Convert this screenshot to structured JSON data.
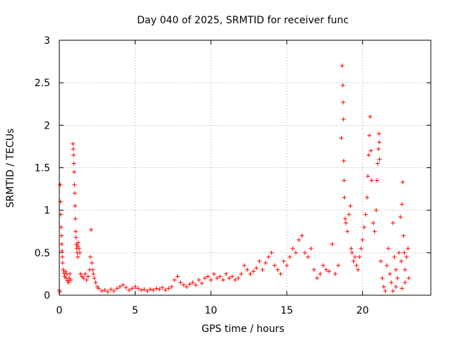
{
  "chart_data": {
    "type": "scatter",
    "title": "Day 040 of 2025, SRMTID for receiver func",
    "xlabel": "GPS time / hours",
    "ylabel": "SRMTID / TECUs",
    "xlim": [
      0,
      24.5
    ],
    "ylim": [
      0,
      3
    ],
    "xticks": [
      0,
      5,
      10,
      15,
      20
    ],
    "xtick_labels": [
      "0",
      "5",
      "10",
      "15",
      "20"
    ],
    "yticks": [
      0,
      0.5,
      1,
      1.5,
      2,
      2.5,
      3
    ],
    "ytick_labels": [
      "0",
      "0.5",
      "1",
      "1.5",
      "2",
      "2.5",
      "3"
    ],
    "grid": true,
    "marker": "+",
    "color": "#ff0000",
    "series": [
      {
        "name": "SRMTID",
        "points": [
          [
            0.0,
            0.06
          ],
          [
            0.03,
            0.04
          ],
          [
            0.06,
            1.3
          ],
          [
            0.08,
            1.1
          ],
          [
            0.1,
            0.95
          ],
          [
            0.12,
            0.8
          ],
          [
            0.14,
            0.7
          ],
          [
            0.16,
            0.6
          ],
          [
            0.18,
            0.52
          ],
          [
            0.2,
            0.45
          ],
          [
            0.22,
            0.38
          ],
          [
            0.25,
            0.3
          ],
          [
            0.3,
            0.26
          ],
          [
            0.35,
            0.22
          ],
          [
            0.4,
            0.28
          ],
          [
            0.45,
            0.2
          ],
          [
            0.5,
            0.25
          ],
          [
            0.55,
            0.17
          ],
          [
            0.6,
            0.15
          ],
          [
            0.65,
            0.2
          ],
          [
            0.7,
            0.25
          ],
          [
            0.75,
            0.18
          ],
          [
            0.9,
            1.78
          ],
          [
            0.92,
            1.72
          ],
          [
            0.94,
            1.65
          ],
          [
            0.96,
            1.55
          ],
          [
            0.98,
            1.45
          ],
          [
            1.0,
            1.3
          ],
          [
            1.02,
            1.2
          ],
          [
            1.04,
            1.05
          ],
          [
            1.06,
            0.9
          ],
          [
            1.08,
            0.75
          ],
          [
            1.1,
            0.68
          ],
          [
            1.12,
            0.6
          ],
          [
            1.15,
            0.55
          ],
          [
            1.18,
            0.5
          ],
          [
            1.2,
            0.58
          ],
          [
            1.22,
            0.45
          ],
          [
            1.25,
            0.62
          ],
          [
            1.3,
            0.55
          ],
          [
            1.35,
            0.5
          ],
          [
            1.4,
            0.25
          ],
          [
            1.5,
            0.22
          ],
          [
            1.6,
            0.2
          ],
          [
            1.7,
            0.25
          ],
          [
            1.8,
            0.18
          ],
          [
            1.9,
            0.22
          ],
          [
            2.0,
            0.3
          ],
          [
            2.05,
            0.45
          ],
          [
            2.1,
            0.77
          ],
          [
            2.15,
            0.38
          ],
          [
            2.2,
            0.3
          ],
          [
            2.25,
            0.25
          ],
          [
            2.3,
            0.2
          ],
          [
            2.4,
            0.15
          ],
          [
            2.5,
            0.1
          ],
          [
            2.6,
            0.08
          ],
          [
            2.8,
            0.05
          ],
          [
            3.0,
            0.06
          ],
          [
            3.2,
            0.04
          ],
          [
            3.4,
            0.07
          ],
          [
            3.6,
            0.05
          ],
          [
            3.8,
            0.08
          ],
          [
            4.0,
            0.1
          ],
          [
            4.2,
            0.12
          ],
          [
            4.4,
            0.09
          ],
          [
            4.6,
            0.06
          ],
          [
            4.8,
            0.08
          ],
          [
            5.0,
            0.1
          ],
          [
            5.2,
            0.08
          ],
          [
            5.4,
            0.06
          ],
          [
            5.6,
            0.07
          ],
          [
            5.8,
            0.05
          ],
          [
            6.0,
            0.07
          ],
          [
            6.2,
            0.06
          ],
          [
            6.4,
            0.08
          ],
          [
            6.6,
            0.07
          ],
          [
            6.8,
            0.09
          ],
          [
            7.0,
            0.06
          ],
          [
            7.2,
            0.08
          ],
          [
            7.4,
            0.1
          ],
          [
            7.6,
            0.18
          ],
          [
            7.8,
            0.22
          ],
          [
            8.0,
            0.15
          ],
          [
            8.2,
            0.12
          ],
          [
            8.4,
            0.1
          ],
          [
            8.6,
            0.13
          ],
          [
            8.8,
            0.15
          ],
          [
            9.0,
            0.12
          ],
          [
            9.2,
            0.18
          ],
          [
            9.4,
            0.14
          ],
          [
            9.6,
            0.2
          ],
          [
            9.8,
            0.22
          ],
          [
            10.0,
            0.18
          ],
          [
            10.2,
            0.25
          ],
          [
            10.4,
            0.2
          ],
          [
            10.6,
            0.22
          ],
          [
            10.8,
            0.18
          ],
          [
            11.0,
            0.25
          ],
          [
            11.2,
            0.2
          ],
          [
            11.4,
            0.22
          ],
          [
            11.6,
            0.18
          ],
          [
            11.8,
            0.2
          ],
          [
            12.0,
            0.25
          ],
          [
            12.2,
            0.35
          ],
          [
            12.4,
            0.3
          ],
          [
            12.6,
            0.25
          ],
          [
            12.8,
            0.28
          ],
          [
            13.0,
            0.32
          ],
          [
            13.2,
            0.4
          ],
          [
            13.4,
            0.3
          ],
          [
            13.6,
            0.38
          ],
          [
            13.8,
            0.45
          ],
          [
            14.0,
            0.5
          ],
          [
            14.2,
            0.35
          ],
          [
            14.4,
            0.3
          ],
          [
            14.6,
            0.25
          ],
          [
            14.8,
            0.4
          ],
          [
            15.0,
            0.35
          ],
          [
            15.2,
            0.45
          ],
          [
            15.4,
            0.55
          ],
          [
            15.6,
            0.5
          ],
          [
            15.8,
            0.65
          ],
          [
            16.0,
            0.7
          ],
          [
            16.2,
            0.5
          ],
          [
            16.4,
            0.45
          ],
          [
            16.6,
            0.55
          ],
          [
            16.8,
            0.3
          ],
          [
            17.0,
            0.2
          ],
          [
            17.2,
            0.25
          ],
          [
            17.4,
            0.35
          ],
          [
            17.6,
            0.3
          ],
          [
            17.8,
            0.28
          ],
          [
            18.0,
            0.6
          ],
          [
            18.2,
            0.25
          ],
          [
            18.4,
            0.35
          ],
          [
            18.6,
            1.85
          ],
          [
            18.65,
            2.7
          ],
          [
            18.7,
            2.47
          ],
          [
            18.72,
            2.27
          ],
          [
            18.74,
            2.07
          ],
          [
            18.76,
            1.58
          ],
          [
            18.78,
            1.35
          ],
          [
            18.8,
            1.15
          ],
          [
            18.85,
            0.9
          ],
          [
            18.9,
            0.85
          ],
          [
            19.0,
            0.75
          ],
          [
            19.1,
            0.95
          ],
          [
            19.2,
            1.05
          ],
          [
            19.25,
            0.55
          ],
          [
            19.3,
            0.5
          ],
          [
            19.4,
            0.4
          ],
          [
            19.5,
            0.45
          ],
          [
            19.6,
            0.35
          ],
          [
            19.7,
            0.3
          ],
          [
            19.8,
            0.45
          ],
          [
            19.9,
            0.55
          ],
          [
            20.0,
            0.65
          ],
          [
            20.1,
            0.8
          ],
          [
            20.2,
            0.95
          ],
          [
            20.3,
            1.15
          ],
          [
            20.35,
            1.4
          ],
          [
            20.4,
            1.65
          ],
          [
            20.45,
            1.88
          ],
          [
            20.5,
            2.1
          ],
          [
            20.55,
            1.7
          ],
          [
            20.6,
            1.35
          ],
          [
            20.7,
            0.85
          ],
          [
            20.8,
            0.75
          ],
          [
            20.9,
            1.0
          ],
          [
            20.95,
            1.35
          ],
          [
            21.0,
            1.55
          ],
          [
            21.05,
            1.72
          ],
          [
            21.08,
            1.9
          ],
          [
            21.1,
            1.8
          ],
          [
            21.12,
            1.6
          ],
          [
            21.2,
            0.4
          ],
          [
            21.3,
            0.2
          ],
          [
            21.4,
            0.1
          ],
          [
            21.5,
            0.05
          ],
          [
            21.6,
            0.35
          ],
          [
            21.7,
            0.55
          ],
          [
            21.8,
            0.25
          ],
          [
            21.9,
            0.15
          ],
          [
            22.0,
            0.85
          ],
          [
            22.1,
            0.45
          ],
          [
            22.2,
            0.3
          ],
          [
            22.3,
            0.2
          ],
          [
            22.4,
            0.5
          ],
          [
            22.5,
            0.92
          ],
          [
            22.55,
            0.4
          ],
          [
            22.6,
            1.07
          ],
          [
            22.65,
            1.33
          ],
          [
            22.7,
            0.7
          ],
          [
            22.75,
            0.5
          ],
          [
            22.8,
            0.3
          ],
          [
            22.9,
            0.45
          ],
          [
            23.0,
            0.55
          ],
          [
            23.05,
            0.2
          ],
          [
            22.0,
            0.05
          ],
          [
            22.2,
            0.1
          ],
          [
            22.6,
            0.08
          ],
          [
            22.8,
            0.15
          ]
        ]
      }
    ]
  }
}
